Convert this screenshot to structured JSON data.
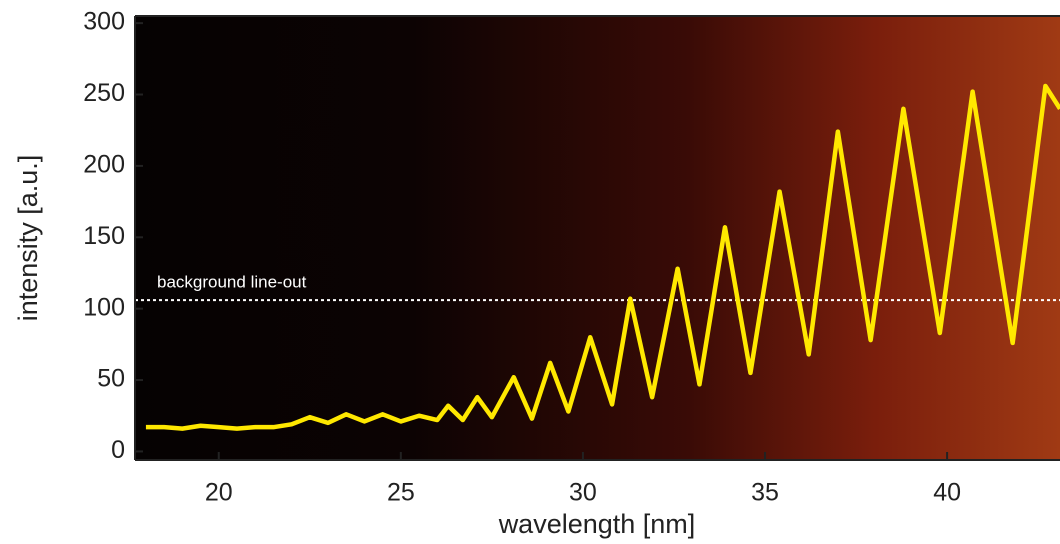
{
  "chart_data": {
    "type": "line",
    "x_label": "wavelength [nm]",
    "y_label": "intensity [a.u.]",
    "x": [
      18.0,
      18.5,
      19,
      19.5,
      20,
      20.5,
      21,
      21.5,
      22,
      22.5,
      23,
      23.5,
      24,
      24.5,
      25,
      25.5,
      26,
      26.3,
      26.7,
      27.1,
      27.5,
      28.1,
      28.6,
      29.1,
      29.6,
      30.2,
      30.8,
      31.3,
      31.9,
      32.6,
      33.2,
      33.9,
      34.6,
      35.4,
      36.2,
      37.0,
      37.9,
      38.8,
      39.8,
      40.7,
      41.8,
      42.7,
      43.1
    ],
    "series": [
      {
        "color": "#ffe800",
        "values": [
          17,
          17,
          16,
          18,
          17,
          16,
          17,
          17,
          19,
          24,
          20,
          26,
          21,
          26,
          21,
          25,
          22,
          32,
          22,
          38,
          24,
          52,
          23,
          62,
          28,
          80,
          33,
          107,
          38,
          128,
          47,
          157,
          55,
          182,
          68,
          224,
          78,
          240,
          83,
          252,
          76,
          256,
          240
        ]
      }
    ],
    "hline": {
      "value": 106,
      "label": "background line-out",
      "color": "#ffffff"
    },
    "xlim": [
      17.7,
      43.1
    ],
    "xticks": [
      20,
      25,
      30,
      35,
      40
    ],
    "ylim": [
      -6,
      305
    ],
    "yticks": [
      0,
      50,
      100,
      150,
      200,
      250,
      300
    ]
  }
}
